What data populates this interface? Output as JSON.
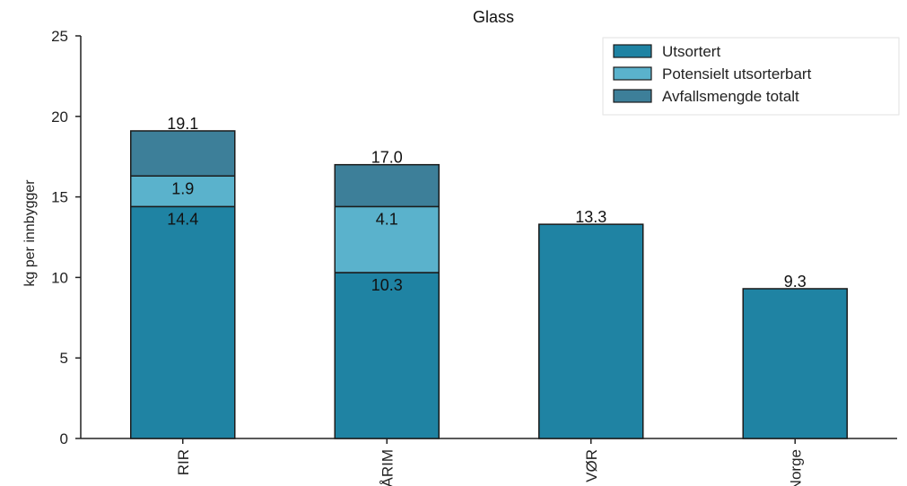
{
  "chart_data": {
    "type": "bar",
    "stacked": true,
    "title": "Glass",
    "xlabel": "",
    "ylabel": "kg per innbygger",
    "ylim": [
      0,
      25
    ],
    "yticks": [
      0,
      5,
      10,
      15,
      20,
      25
    ],
    "grid": false,
    "legend_position": "top-right",
    "categories": [
      "RIR",
      "ÅRIM",
      "VØR",
      "Norge"
    ],
    "series": [
      {
        "name": "Utsortert",
        "color": "#1f83a3",
        "values": [
          14.4,
          10.3,
          13.3,
          9.3
        ]
      },
      {
        "name": "Potensielt utsorterbart",
        "color": "#5ab2cc",
        "values": [
          1.9,
          4.1,
          0,
          0
        ]
      },
      {
        "name": "Avfallsmengde totalt",
        "color": "#3d7f99",
        "values": [
          2.8,
          2.6,
          0,
          0
        ]
      }
    ],
    "data_labels": [
      {
        "category": "RIR",
        "segments": [
          "14.4",
          "1.9"
        ],
        "total": "19.1"
      },
      {
        "category": "ÅRIM",
        "segments": [
          "10.3",
          "4.1"
        ],
        "total": "17.0"
      },
      {
        "category": "VØR",
        "segments": [],
        "total": "13.3"
      },
      {
        "category": "Norge",
        "segments": [],
        "total": "9.3"
      }
    ]
  }
}
